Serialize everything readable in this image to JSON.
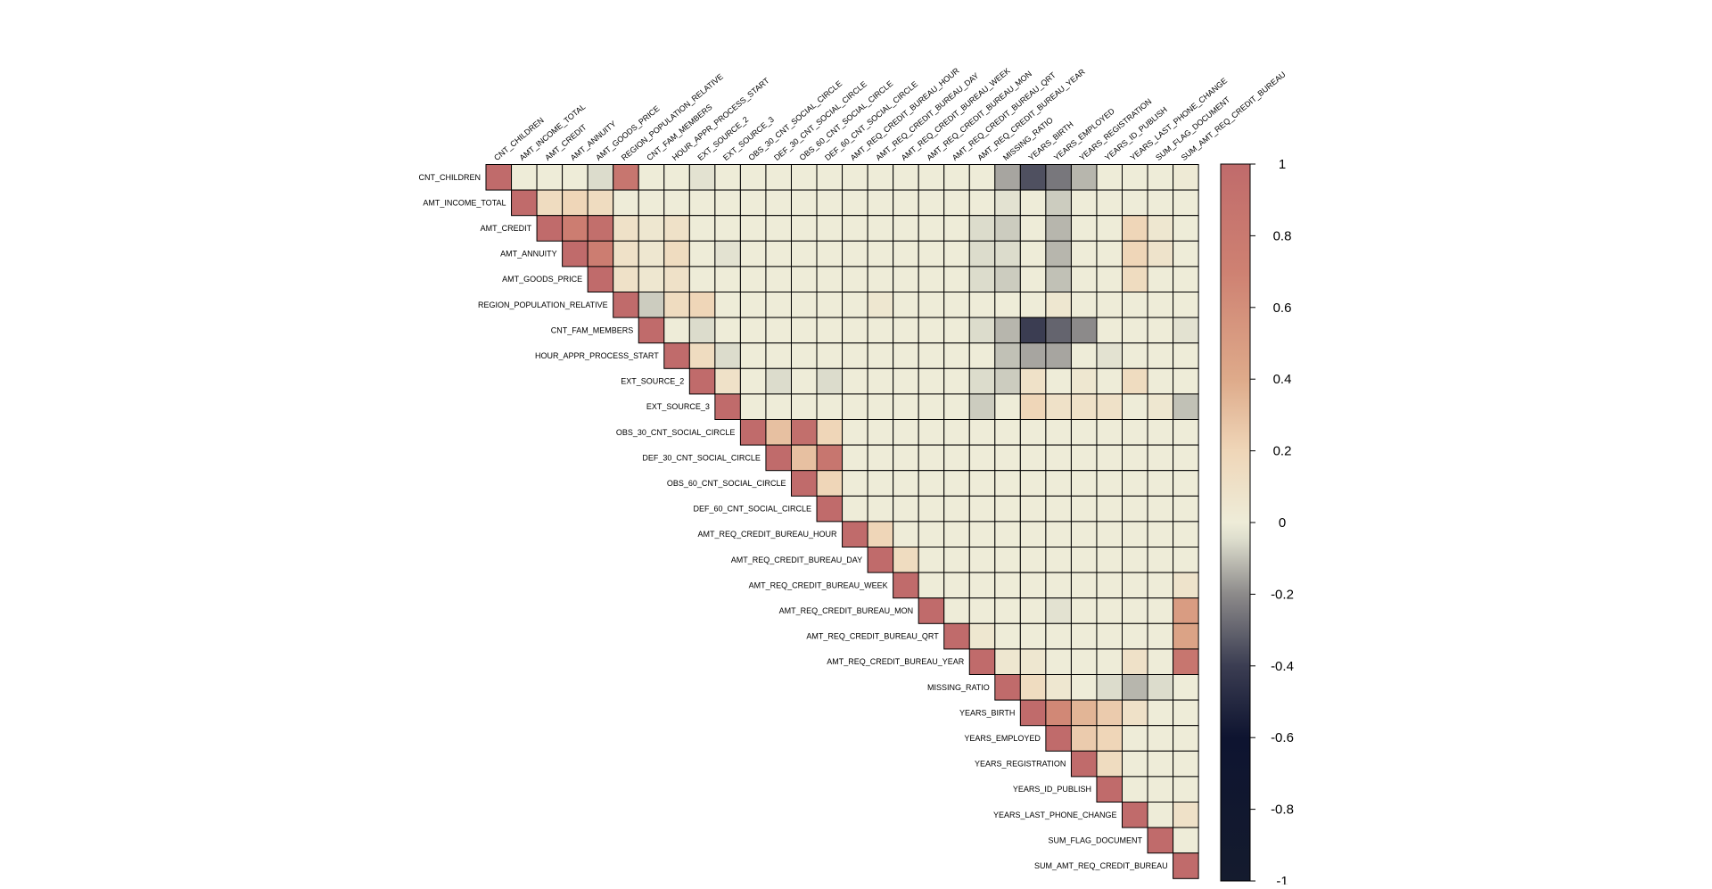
{
  "chart_data": {
    "type": "heatmap",
    "layout": "upper-triangle correlation matrix",
    "title": "",
    "variables": [
      "CNT_CHILDREN",
      "AMT_INCOME_TOTAL",
      "AMT_CREDIT",
      "AMT_ANNUITY",
      "AMT_GOODS_PRICE",
      "REGION_POPULATION_RELATIVE",
      "CNT_FAM_MEMBERS",
      "HOUR_APPR_PROCESS_START",
      "EXT_SOURCE_2",
      "EXT_SOURCE_3",
      "OBS_30_CNT_SOCIAL_CIRCLE",
      "DEF_30_CNT_SOCIAL_CIRCLE",
      "OBS_60_CNT_SOCIAL_CIRCLE",
      "DEF_60_CNT_SOCIAL_CIRCLE",
      "AMT_REQ_CREDIT_BUREAU_HOUR",
      "AMT_REQ_CREDIT_BUREAU_DAY",
      "AMT_REQ_CREDIT_BUREAU_WEEK",
      "AMT_REQ_CREDIT_BUREAU_MON",
      "AMT_REQ_CREDIT_BUREAU_QRT",
      "AMT_REQ_CREDIT_BUREAU_YEAR",
      "MISSING_RATIO",
      "YEARS_BIRTH",
      "YEARS_EMPLOYED",
      "YEARS_REGISTRATION",
      "YEARS_ID_PUBLISH",
      "YEARS_LAST_PHONE_CHANGE",
      "SUM_FLAG_DOCUMENT",
      "SUM_AMT_REQ_CREDIT_BUREAU"
    ],
    "nonzero_correlations": [
      [
        0,
        5,
        0.85
      ],
      [
        0,
        4,
        -0.05
      ],
      [
        0,
        8,
        -0.03
      ],
      [
        0,
        20,
        -0.15
      ],
      [
        0,
        21,
        -0.35
      ],
      [
        0,
        22,
        -0.25
      ],
      [
        0,
        23,
        -0.12
      ],
      [
        0,
        27,
        0.02
      ],
      [
        1,
        2,
        0.15
      ],
      [
        1,
        3,
        0.2
      ],
      [
        1,
        4,
        0.15
      ],
      [
        1,
        20,
        -0.03
      ],
      [
        1,
        22,
        -0.08
      ],
      [
        2,
        3,
        0.75
      ],
      [
        2,
        4,
        0.95
      ],
      [
        2,
        5,
        0.1
      ],
      [
        2,
        6,
        0.05
      ],
      [
        2,
        7,
        0.1
      ],
      [
        2,
        19,
        -0.05
      ],
      [
        2,
        20,
        -0.08
      ],
      [
        2,
        22,
        -0.12
      ],
      [
        2,
        25,
        0.2
      ],
      [
        2,
        26,
        0.05
      ],
      [
        3,
        4,
        0.75
      ],
      [
        3,
        5,
        0.1
      ],
      [
        3,
        6,
        0.05
      ],
      [
        3,
        7,
        0.15
      ],
      [
        3,
        9,
        -0.03
      ],
      [
        3,
        19,
        -0.05
      ],
      [
        3,
        20,
        -0.05
      ],
      [
        3,
        22,
        -0.12
      ],
      [
        3,
        25,
        0.2
      ],
      [
        3,
        26,
        0.08
      ],
      [
        4,
        5,
        0.1
      ],
      [
        4,
        6,
        0.05
      ],
      [
        4,
        7,
        0.1
      ],
      [
        4,
        19,
        -0.05
      ],
      [
        4,
        20,
        -0.08
      ],
      [
        4,
        22,
        -0.1
      ],
      [
        4,
        25,
        0.15
      ],
      [
        5,
        6,
        -0.08
      ],
      [
        5,
        7,
        0.15
      ],
      [
        5,
        8,
        0.2
      ],
      [
        5,
        15,
        0.05
      ],
      [
        5,
        22,
        0.05
      ],
      [
        6,
        8,
        -0.05
      ],
      [
        6,
        19,
        -0.05
      ],
      [
        6,
        20,
        -0.12
      ],
      [
        6,
        21,
        -0.4
      ],
      [
        6,
        22,
        -0.3
      ],
      [
        6,
        23,
        -0.2
      ],
      [
        6,
        27,
        -0.03
      ],
      [
        7,
        8,
        0.15
      ],
      [
        7,
        9,
        -0.05
      ],
      [
        7,
        20,
        -0.1
      ],
      [
        7,
        21,
        -0.15
      ],
      [
        7,
        22,
        -0.15
      ],
      [
        7,
        24,
        -0.03
      ],
      [
        8,
        9,
        0.1
      ],
      [
        8,
        11,
        -0.05
      ],
      [
        8,
        13,
        -0.05
      ],
      [
        8,
        19,
        -0.05
      ],
      [
        8,
        20,
        -0.08
      ],
      [
        8,
        21,
        0.1
      ],
      [
        8,
        23,
        0.05
      ],
      [
        8,
        25,
        0.15
      ],
      [
        9,
        19,
        -0.08
      ],
      [
        9,
        21,
        0.2
      ],
      [
        9,
        22,
        0.1
      ],
      [
        9,
        23,
        0.1
      ],
      [
        9,
        24,
        0.1
      ],
      [
        9,
        26,
        0.05
      ],
      [
        9,
        27,
        -0.1
      ],
      [
        10,
        11,
        0.3
      ],
      [
        10,
        12,
        0.95
      ],
      [
        10,
        13,
        0.2
      ],
      [
        11,
        12,
        0.3
      ],
      [
        11,
        13,
        0.85
      ],
      [
        12,
        13,
        0.2
      ],
      [
        14,
        15,
        0.2
      ],
      [
        15,
        16,
        0.15
      ],
      [
        16,
        27,
        0.08
      ],
      [
        17,
        22,
        -0.03
      ],
      [
        17,
        27,
        0.5
      ],
      [
        18,
        19,
        0.05
      ],
      [
        18,
        27,
        0.45
      ],
      [
        19,
        20,
        0.05
      ],
      [
        19,
        21,
        0.05
      ],
      [
        19,
        25,
        0.1
      ],
      [
        19,
        27,
        0.85
      ],
      [
        20,
        21,
        0.15
      ],
      [
        20,
        22,
        0.05
      ],
      [
        20,
        24,
        -0.05
      ],
      [
        20,
        25,
        -0.12
      ],
      [
        20,
        26,
        -0.05
      ],
      [
        21,
        22,
        0.65
      ],
      [
        21,
        23,
        0.35
      ],
      [
        21,
        24,
        0.25
      ],
      [
        21,
        25,
        0.1
      ],
      [
        22,
        23,
        0.25
      ],
      [
        22,
        24,
        0.2
      ],
      [
        23,
        24,
        0.15
      ],
      [
        25,
        27,
        0.1
      ]
    ],
    "colorbar": {
      "min": -1,
      "max": 1,
      "ticks": [
        1,
        0.8,
        0.6,
        0.4,
        0.2,
        0,
        -0.2,
        -0.4,
        -0.6,
        -0.8,
        -1
      ],
      "tick_labels": [
        "1",
        "0.8",
        "0.6",
        "0.4",
        "0.2",
        "0",
        "-0.2",
        "-0.4",
        "-0.6",
        "-0.8",
        "-1"
      ],
      "colors": [
        [
          -1,
          "#141B2E"
        ],
        [
          -0.6,
          "#0E1430"
        ],
        [
          -0.4,
          "#3B3D52"
        ],
        [
          -0.2,
          "#8C8A8A"
        ],
        [
          -0.05,
          "#DCDCCC"
        ],
        [
          0,
          "#EEECD8"
        ],
        [
          0.2,
          "#EFD6B8"
        ],
        [
          0.4,
          "#DEAA8A"
        ],
        [
          0.7,
          "#CE8172"
        ],
        [
          1,
          "#C06B6B"
        ]
      ]
    },
    "colorbar_position": "right",
    "grid": true
  }
}
